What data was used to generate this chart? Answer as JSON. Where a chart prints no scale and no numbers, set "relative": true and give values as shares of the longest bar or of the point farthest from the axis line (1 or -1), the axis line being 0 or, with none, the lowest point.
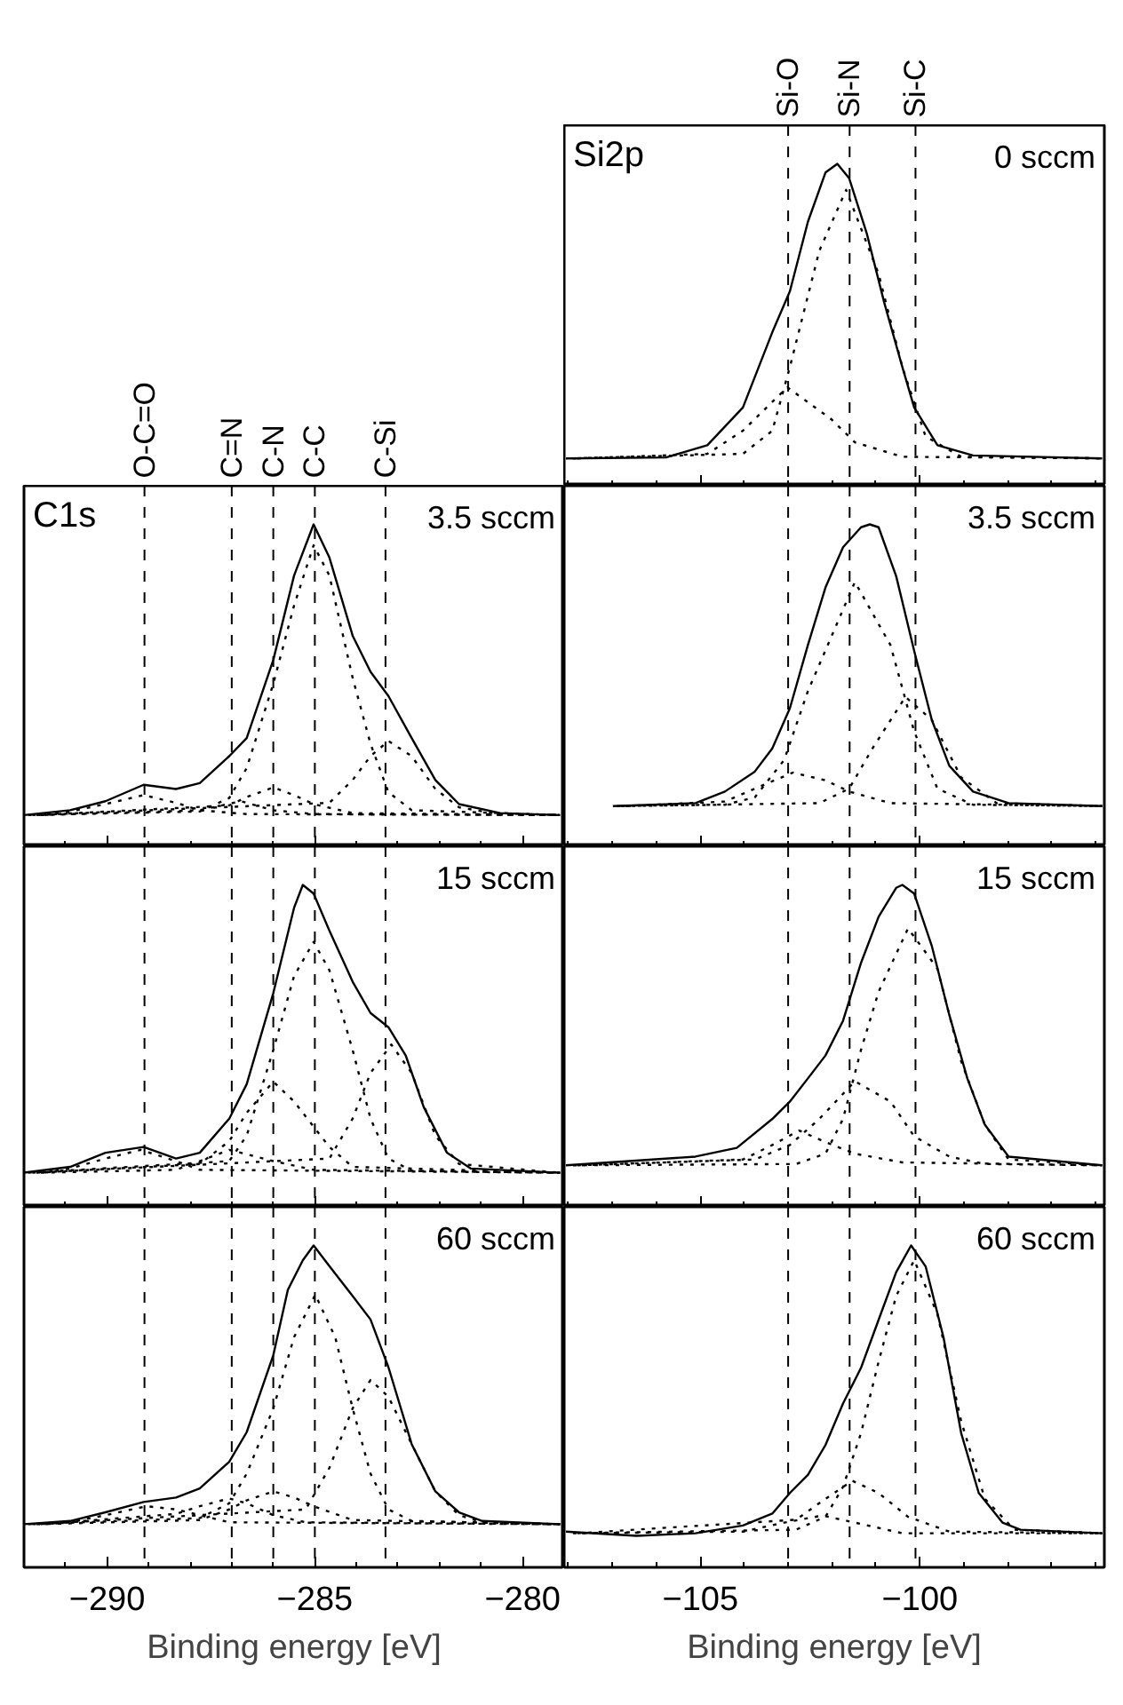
{
  "chart_data": [
    {
      "type": "line",
      "relative": true,
      "title": "0 sccm",
      "subtitle": "Si2p",
      "xlim": [
        -108.1,
        -95.8
      ],
      "xticks": [
        -105,
        -100
      ],
      "tick_labels": false,
      "ref_lines": [
        {
          "axis": "x",
          "value": -103.0,
          "label": "Si-O",
          "color": "#000000",
          "line_style": "dashed"
        },
        {
          "axis": "x",
          "value": -101.6,
          "label": "Si-N",
          "color": "#000000",
          "line_style": "dashed"
        },
        {
          "axis": "x",
          "value": -100.1,
          "label": "Si-C",
          "color": "#000000",
          "line_style": "dashed"
        }
      ],
      "series": [
        {
          "color": "#000000",
          "line_style": "solid",
          "x": [
            -108.06,
            -105.78,
            -104.84,
            -104.03,
            -103.36,
            -102.96,
            -102.55,
            -102.15,
            -101.88,
            -101.61,
            -101.21,
            -100.81,
            -100.4,
            -100.13,
            -99.6,
            -98.79,
            -95.85
          ],
          "values": [
            0.085,
            0.088,
            0.126,
            0.243,
            0.477,
            0.604,
            0.82,
            0.973,
            1.0,
            0.955,
            0.784,
            0.568,
            0.369,
            0.243,
            0.126,
            0.094,
            0.085
          ]
        },
        {
          "color": "#000000",
          "line_style": "dotted",
          "x": [
            -107.9,
            -104.03,
            -103.36,
            -102.96,
            -102.29,
            -101.68,
            -100.94,
            -100.4,
            -99.87,
            -99.06,
            -95.85
          ],
          "values": [
            0.085,
            0.099,
            0.171,
            0.369,
            0.73,
            0.919,
            0.658,
            0.369,
            0.153,
            0.09,
            0.085
          ]
        },
        {
          "color": "#000000",
          "line_style": "dotted",
          "x": [
            -107.8,
            -104.84,
            -104.03,
            -103.02,
            -102.02,
            -101.48,
            -100.4,
            -95.85
          ],
          "values": [
            0.085,
            0.099,
            0.171,
            0.306,
            0.207,
            0.135,
            0.09,
            0.085
          ]
        }
      ]
    },
    {
      "type": "line",
      "relative": true,
      "title": "3.5 sccm",
      "subtitle": "C1s",
      "xlim": [
        -292,
        -279
      ],
      "xticks": [
        -290,
        -285,
        -280
      ],
      "tick_labels": false,
      "ref_lines": [
        {
          "axis": "x",
          "value": -289.1,
          "label": "O-C=O",
          "color": "#000000",
          "line_style": "dashed"
        },
        {
          "axis": "x",
          "value": -287.0,
          "label": "C=N",
          "color": "#000000",
          "line_style": "dashed"
        },
        {
          "axis": "x",
          "value": -286.0,
          "label": "C-N",
          "color": "#000000",
          "line_style": "dashed"
        },
        {
          "axis": "x",
          "value": -285.0,
          "label": "C-C",
          "color": "#000000",
          "line_style": "dashed"
        },
        {
          "axis": "x",
          "value": -283.3,
          "label": "C-Si",
          "color": "#000000",
          "line_style": "dashed"
        }
      ],
      "series": [
        {
          "color": "#000000",
          "line_style": "solid",
          "x": [
            -292.0,
            -290.89,
            -290.04,
            -289.12,
            -288.34,
            -287.77,
            -287.06,
            -286.64,
            -286.0,
            -285.5,
            -285.03,
            -284.65,
            -284.09,
            -283.66,
            -283.23,
            -282.67,
            -282.1,
            -281.53,
            -280.54,
            -279.1
          ],
          "values": [
            0.097,
            0.112,
            0.14,
            0.191,
            0.178,
            0.196,
            0.28,
            0.336,
            0.579,
            0.841,
            1.0,
            0.897,
            0.654,
            0.542,
            0.467,
            0.336,
            0.206,
            0.131,
            0.103,
            0.097
          ]
        },
        {
          "color": "#000000",
          "line_style": "dotted",
          "x": [
            -291.9,
            -287.77,
            -287.06,
            -286.64,
            -286.0,
            -285.5,
            -285.03,
            -284.65,
            -284.09,
            -283.66,
            -283.23,
            -282.67,
            -279.1
          ],
          "values": [
            0.097,
            0.108,
            0.15,
            0.243,
            0.505,
            0.748,
            0.935,
            0.841,
            0.523,
            0.318,
            0.168,
            0.112,
            0.097
          ]
        },
        {
          "color": "#000000",
          "line_style": "dotted",
          "x": [
            -291.8,
            -284.65,
            -284.09,
            -283.66,
            -283.23,
            -282.67,
            -282.1,
            -281.53,
            -280.54,
            -279.1
          ],
          "values": [
            0.097,
            0.135,
            0.206,
            0.28,
            0.327,
            0.28,
            0.178,
            0.121,
            0.099,
            0.097
          ]
        },
        {
          "color": "#000000",
          "line_style": "dotted",
          "x": [
            -291.7,
            -287.06,
            -286.64,
            -286.0,
            -285.5,
            -285.03,
            -284.09,
            -279.1
          ],
          "values": [
            0.097,
            0.127,
            0.153,
            0.183,
            0.159,
            0.131,
            0.103,
            0.097
          ]
        },
        {
          "color": "#000000",
          "line_style": "dotted",
          "x": [
            -291.6,
            -287.77,
            -286.78,
            -286.0,
            -285.03,
            -279.1
          ],
          "values": [
            0.097,
            0.112,
            0.14,
            0.112,
            0.1,
            0.097
          ]
        },
        {
          "color": "#000000",
          "line_style": "dotted",
          "x": [
            -291.5,
            -290.89,
            -290.04,
            -289.12,
            -288.34,
            -287.77,
            -286.64,
            -279.1
          ],
          "values": [
            0.097,
            0.108,
            0.131,
            0.159,
            0.135,
            0.112,
            0.1,
            0.097
          ]
        }
      ]
    },
    {
      "type": "line",
      "relative": true,
      "title": "3.5 sccm",
      "xlim": [
        -108.1,
        -95.8
      ],
      "xticks": [
        -105,
        -100
      ],
      "tick_labels": false,
      "ref_lines": [
        {
          "axis": "x",
          "value": -103.0,
          "color": "#000000",
          "line_style": "dashed"
        },
        {
          "axis": "x",
          "value": -101.6,
          "color": "#000000",
          "line_style": "dashed"
        },
        {
          "axis": "x",
          "value": -100.1,
          "color": "#000000",
          "line_style": "dashed"
        }
      ],
      "series": [
        {
          "color": "#000000",
          "line_style": "solid",
          "x": [
            -106.99,
            -105.11,
            -104.44,
            -103.76,
            -103.36,
            -102.96,
            -102.55,
            -102.15,
            -101.75,
            -101.34,
            -101.14,
            -100.94,
            -100.54,
            -100.13,
            -99.73,
            -99.33,
            -98.79,
            -97.98,
            -95.85
          ],
          "values": [
            0.125,
            0.134,
            0.17,
            0.232,
            0.304,
            0.429,
            0.625,
            0.804,
            0.929,
            0.991,
            1.0,
            0.991,
            0.839,
            0.607,
            0.393,
            0.25,
            0.17,
            0.134,
            0.125
          ]
        },
        {
          "color": "#000000",
          "line_style": "dotted",
          "x": [
            -106.9,
            -104.44,
            -103.76,
            -103.09,
            -102.55,
            -101.48,
            -100.67,
            -100.13,
            -99.6,
            -98.79,
            -95.85
          ],
          "values": [
            0.125,
            0.129,
            0.152,
            0.268,
            0.482,
            0.821,
            0.625,
            0.357,
            0.179,
            0.129,
            0.125
          ]
        },
        {
          "color": "#000000",
          "line_style": "dotted",
          "x": [
            -106.8,
            -102.29,
            -101.61,
            -101.08,
            -100.33,
            -99.73,
            -99.06,
            -98.25,
            -95.85
          ],
          "values": [
            0.125,
            0.134,
            0.179,
            0.304,
            0.464,
            0.393,
            0.214,
            0.134,
            0.125
          ]
        },
        {
          "color": "#000000",
          "line_style": "dotted",
          "x": [
            -106.7,
            -104.44,
            -103.76,
            -102.89,
            -102.15,
            -101.61,
            -100.67,
            -95.85
          ],
          "values": [
            0.125,
            0.139,
            0.179,
            0.229,
            0.205,
            0.17,
            0.134,
            0.125
          ]
        }
      ]
    },
    {
      "type": "line",
      "relative": true,
      "title": "15 sccm",
      "xlim": [
        -292,
        -279
      ],
      "xticks": [
        -290,
        -285,
        -280
      ],
      "tick_labels": false,
      "ref_lines": [
        {
          "axis": "x",
          "value": -289.1,
          "color": "#000000",
          "line_style": "dashed"
        },
        {
          "axis": "x",
          "value": -287.0,
          "color": "#000000",
          "line_style": "dashed"
        },
        {
          "axis": "x",
          "value": -286.0,
          "color": "#000000",
          "line_style": "dashed"
        },
        {
          "axis": "x",
          "value": -285.0,
          "color": "#000000",
          "line_style": "dashed"
        },
        {
          "axis": "x",
          "value": -283.3,
          "color": "#000000",
          "line_style": "dashed"
        }
      ],
      "series": [
        {
          "color": "#000000",
          "line_style": "solid",
          "x": [
            -292.0,
            -290.89,
            -290.04,
            -289.12,
            -288.34,
            -287.77,
            -287.06,
            -286.64,
            -286.0,
            -285.5,
            -285.29,
            -285.03,
            -284.65,
            -284.09,
            -283.66,
            -283.23,
            -282.81,
            -282.38,
            -281.82,
            -281.25,
            -279.1
          ],
          "values": [
            0.106,
            0.124,
            0.168,
            0.186,
            0.15,
            0.168,
            0.274,
            0.381,
            0.664,
            0.929,
            1.0,
            0.973,
            0.858,
            0.699,
            0.602,
            0.558,
            0.469,
            0.31,
            0.168,
            0.119,
            0.106
          ]
        },
        {
          "color": "#000000",
          "line_style": "dotted",
          "x": [
            -291.9,
            -287.06,
            -286.64,
            -286.0,
            -285.5,
            -285.03,
            -284.65,
            -284.09,
            -283.66,
            -283.23,
            -282.67,
            -279.1
          ],
          "values": [
            0.106,
            0.142,
            0.221,
            0.487,
            0.717,
            0.823,
            0.735,
            0.487,
            0.274,
            0.15,
            0.112,
            0.106
          ]
        },
        {
          "color": "#000000",
          "line_style": "dotted",
          "x": [
            -291.8,
            -284.65,
            -284.09,
            -283.66,
            -283.16,
            -282.67,
            -282.1,
            -281.53,
            -279.1
          ],
          "values": [
            0.106,
            0.15,
            0.274,
            0.416,
            0.504,
            0.416,
            0.221,
            0.133,
            0.106
          ]
        },
        {
          "color": "#000000",
          "line_style": "dotted",
          "x": [
            -291.7,
            -287.77,
            -287.06,
            -286.64,
            -286.0,
            -285.5,
            -284.65,
            -284.09,
            -279.1
          ],
          "values": [
            0.106,
            0.133,
            0.204,
            0.292,
            0.389,
            0.327,
            0.186,
            0.124,
            0.106
          ]
        },
        {
          "color": "#000000",
          "line_style": "dotted",
          "x": [
            -291.6,
            -288.34,
            -287.77,
            -287.06,
            -286.0,
            -285.03,
            -279.1
          ],
          "values": [
            0.106,
            0.115,
            0.142,
            0.177,
            0.142,
            0.115,
            0.106
          ]
        },
        {
          "color": "#000000",
          "line_style": "dotted",
          "x": [
            -291.5,
            -290.89,
            -290.04,
            -289.19,
            -288.34,
            -287.77,
            -279.1
          ],
          "values": [
            0.106,
            0.119,
            0.15,
            0.177,
            0.142,
            0.115,
            0.106
          ]
        }
      ]
    },
    {
      "type": "line",
      "relative": true,
      "title": "15 sccm",
      "xlim": [
        -108.1,
        -95.8
      ],
      "xticks": [
        -105,
        -100
      ],
      "tick_labels": false,
      "ref_lines": [
        {
          "axis": "x",
          "value": -103.0,
          "color": "#000000",
          "line_style": "dashed"
        },
        {
          "axis": "x",
          "value": -101.6,
          "color": "#000000",
          "line_style": "dashed"
        },
        {
          "axis": "x",
          "value": -100.1,
          "color": "#000000",
          "line_style": "dashed"
        }
      ],
      "series": [
        {
          "color": "#000000",
          "line_style": "solid",
          "x": [
            -108.06,
            -105.11,
            -104.17,
            -103.36,
            -102.96,
            -102.55,
            -102.15,
            -101.75,
            -101.34,
            -100.94,
            -100.54,
            -100.4,
            -100.13,
            -99.73,
            -99.33,
            -98.92,
            -98.52,
            -97.98,
            -95.85
          ],
          "values": [
            0.129,
            0.156,
            0.183,
            0.273,
            0.327,
            0.399,
            0.47,
            0.578,
            0.758,
            0.901,
            0.991,
            1.0,
            0.973,
            0.811,
            0.596,
            0.399,
            0.255,
            0.156,
            0.129
          ]
        },
        {
          "color": "#000000",
          "line_style": "dotted",
          "x": [
            -107.9,
            -102.82,
            -102.15,
            -101.75,
            -101.34,
            -100.94,
            -100.27,
            -99.6,
            -99.06,
            -98.52,
            -97.98,
            -95.85
          ],
          "values": [
            0.129,
            0.133,
            0.165,
            0.273,
            0.488,
            0.668,
            0.865,
            0.74,
            0.452,
            0.255,
            0.147,
            0.129
          ]
        },
        {
          "color": "#000000",
          "line_style": "dotted",
          "x": [
            -107.8,
            -103.76,
            -102.96,
            -102.29,
            -101.48,
            -100.67,
            -100.13,
            -99.33,
            -98.52,
            -95.85
          ],
          "values": [
            0.129,
            0.147,
            0.192,
            0.273,
            0.39,
            0.327,
            0.219,
            0.156,
            0.133,
            0.129
          ]
        },
        {
          "color": "#000000",
          "line_style": "dotted",
          "x": [
            -107.7,
            -104.03,
            -103.36,
            -102.75,
            -102.15,
            -101.48,
            -100.4,
            -95.85
          ],
          "values": [
            0.129,
            0.147,
            0.192,
            0.237,
            0.201,
            0.165,
            0.138,
            0.129
          ]
        }
      ]
    },
    {
      "type": "line",
      "relative": true,
      "title": "60 sccm",
      "xlabel": "Binding energy [eV]",
      "xlim": [
        -292,
        -279
      ],
      "xticks": [
        -290,
        -285,
        -280
      ],
      "tick_labels": "x",
      "ref_lines": [
        {
          "axis": "x",
          "value": -289.1,
          "color": "#000000",
          "line_style": "dashed"
        },
        {
          "axis": "x",
          "value": -287.0,
          "color": "#000000",
          "line_style": "dashed"
        },
        {
          "axis": "x",
          "value": -286.0,
          "color": "#000000",
          "line_style": "dashed"
        },
        {
          "axis": "x",
          "value": -285.0,
          "color": "#000000",
          "line_style": "dashed"
        },
        {
          "axis": "x",
          "value": -283.3,
          "color": "#000000",
          "line_style": "dashed"
        }
      ],
      "series": [
        {
          "color": "#000000",
          "line_style": "solid",
          "x": [
            -292.0,
            -290.89,
            -290.04,
            -289.12,
            -288.34,
            -287.77,
            -287.06,
            -286.64,
            -286.0,
            -285.65,
            -285.29,
            -285.03,
            -284.65,
            -284.09,
            -283.66,
            -283.23,
            -282.67,
            -282.1,
            -281.53,
            -280.97,
            -279.1
          ],
          "values": [
            0.134,
            0.144,
            0.171,
            0.203,
            0.217,
            0.245,
            0.328,
            0.42,
            0.659,
            0.862,
            0.954,
            1.0,
            0.936,
            0.843,
            0.77,
            0.622,
            0.383,
            0.236,
            0.171,
            0.144,
            0.134
          ]
        },
        {
          "color": "#000000",
          "line_style": "dotted",
          "x": [
            -291.9,
            -287.77,
            -287.06,
            -286.64,
            -286.0,
            -285.5,
            -284.99,
            -284.51,
            -284.09,
            -283.66,
            -283.23,
            -282.67,
            -279.1
          ],
          "values": [
            0.134,
            0.153,
            0.199,
            0.291,
            0.494,
            0.715,
            0.847,
            0.715,
            0.494,
            0.291,
            0.18,
            0.144,
            0.134
          ]
        },
        {
          "color": "#000000",
          "line_style": "dotted",
          "x": [
            -291.8,
            -285.22,
            -284.65,
            -284.09,
            -283.66,
            -283.23,
            -282.67,
            -282.1,
            -281.53,
            -280.97,
            -279.1
          ],
          "values": [
            0.134,
            0.18,
            0.309,
            0.494,
            0.582,
            0.53,
            0.383,
            0.236,
            0.162,
            0.14,
            0.134
          ]
        },
        {
          "color": "#000000",
          "line_style": "dotted",
          "x": [
            -291.7,
            -287.77,
            -287.06,
            -286.64,
            -286.0,
            -285.5,
            -285.03,
            -284.09,
            -279.1
          ],
          "values": [
            0.134,
            0.147,
            0.18,
            0.208,
            0.236,
            0.217,
            0.19,
            0.147,
            0.134
          ]
        },
        {
          "color": "#000000",
          "line_style": "dotted",
          "x": [
            -291.6,
            -288.34,
            -287.77,
            -287.06,
            -286.64,
            -286.0,
            -285.22,
            -279.1
          ],
          "values": [
            0.134,
            0.166,
            0.19,
            0.214,
            0.199,
            0.162,
            0.14,
            0.134
          ]
        },
        {
          "color": "#000000",
          "line_style": "dotted",
          "x": [
            -291.5,
            -290.89,
            -290.04,
            -289.05,
            -288.34,
            -287.77,
            -287.06,
            -279.1
          ],
          "values": [
            0.134,
            0.14,
            0.162,
            0.19,
            0.18,
            0.162,
            0.14,
            0.134
          ]
        }
      ]
    },
    {
      "type": "line",
      "relative": true,
      "title": "60 sccm",
      "xlabel": "Binding energy [eV]",
      "xlim": [
        -108.1,
        -95.8
      ],
      "xticks": [
        -105,
        -100
      ],
      "tick_labels": "x",
      "ref_lines": [
        {
          "axis": "x",
          "value": -103.0,
          "color": "#000000",
          "line_style": "dashed"
        },
        {
          "axis": "x",
          "value": -101.6,
          "color": "#000000",
          "line_style": "dashed"
        },
        {
          "axis": "x",
          "value": -100.1,
          "color": "#000000",
          "line_style": "dashed"
        }
      ],
      "series": [
        {
          "color": "#000000",
          "line_style": "solid",
          "x": [
            -108.06,
            -106.45,
            -105.11,
            -104.03,
            -103.36,
            -102.96,
            -102.55,
            -102.15,
            -101.75,
            -101.34,
            -100.94,
            -100.54,
            -100.2,
            -99.87,
            -99.46,
            -99.06,
            -98.66,
            -98.12,
            -97.71,
            -95.85
          ],
          "values": [
            0.111,
            0.098,
            0.106,
            0.13,
            0.167,
            0.231,
            0.287,
            0.38,
            0.509,
            0.62,
            0.769,
            0.917,
            1.0,
            0.935,
            0.713,
            0.417,
            0.231,
            0.139,
            0.117,
            0.106
          ]
        },
        {
          "color": "#000000",
          "line_style": "dotted",
          "x": [
            -107.9,
            -102.82,
            -102.15,
            -101.75,
            -101.34,
            -100.94,
            -100.54,
            -100.13,
            -99.6,
            -99.06,
            -98.52,
            -97.85,
            -95.85
          ],
          "values": [
            0.106,
            0.117,
            0.157,
            0.25,
            0.417,
            0.639,
            0.843,
            0.954,
            0.787,
            0.454,
            0.213,
            0.117,
            0.106
          ]
        },
        {
          "color": "#000000",
          "line_style": "dotted",
          "x": [
            -107.8,
            -102.82,
            -102.15,
            -101.54,
            -100.94,
            -100.27,
            -99.33,
            -95.85
          ],
          "values": [
            0.106,
            0.148,
            0.213,
            0.269,
            0.231,
            0.157,
            0.111,
            0.106
          ]
        },
        {
          "color": "#000000",
          "line_style": "dotted",
          "x": [
            -107.7,
            -104.03,
            -103.09,
            -102.22,
            -101.48,
            -100.4,
            -95.85
          ],
          "values": [
            0.106,
            0.111,
            0.139,
            0.161,
            0.139,
            0.106,
            0.106
          ]
        }
      ]
    }
  ]
}
